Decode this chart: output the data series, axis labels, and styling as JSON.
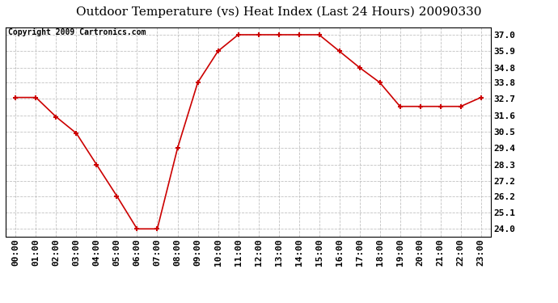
{
  "title": "Outdoor Temperature (vs) Heat Index (Last 24 Hours) 20090330",
  "copyright_text": "Copyright 2009 Cartronics.com",
  "x_labels": [
    "00:00",
    "01:00",
    "02:00",
    "03:00",
    "04:00",
    "05:00",
    "06:00",
    "07:00",
    "08:00",
    "09:00",
    "10:00",
    "11:00",
    "12:00",
    "13:00",
    "14:00",
    "15:00",
    "16:00",
    "17:00",
    "18:00",
    "19:00",
    "20:00",
    "21:00",
    "22:00",
    "23:00"
  ],
  "y_values": [
    32.8,
    32.8,
    31.5,
    30.4,
    28.3,
    26.2,
    24.0,
    24.0,
    29.4,
    33.8,
    35.9,
    37.0,
    37.0,
    37.0,
    37.0,
    37.0,
    35.9,
    34.8,
    33.8,
    32.2,
    32.2,
    32.2,
    32.2,
    32.8
  ],
  "y_ticks": [
    24.0,
    25.1,
    26.2,
    27.2,
    28.3,
    29.4,
    30.5,
    31.6,
    32.7,
    33.8,
    34.8,
    35.9,
    37.0
  ],
  "ylim": [
    23.5,
    37.5
  ],
  "line_color": "#cc0000",
  "marker": "+",
  "marker_size": 5,
  "marker_linewidth": 1.5,
  "line_width": 1.2,
  "grid_color": "#bbbbbb",
  "grid_style": "--",
  "background_color": "#ffffff",
  "title_fontsize": 11,
  "copyright_fontsize": 7,
  "tick_fontsize": 8
}
